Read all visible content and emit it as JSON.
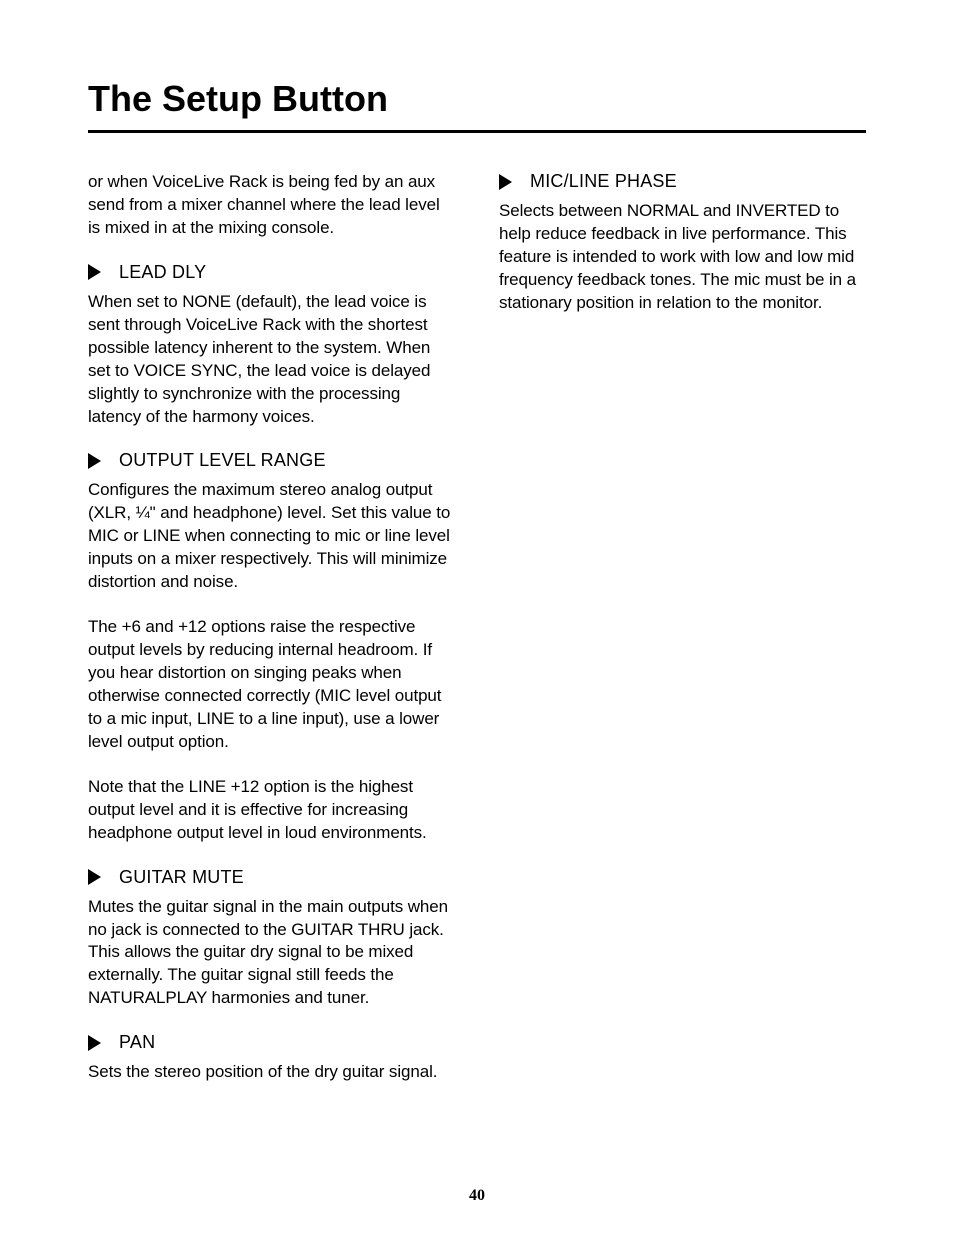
{
  "page": {
    "title": "The Setup Button",
    "number": "40"
  },
  "left": {
    "intro": "or when VoiceLive Rack is being fed by an aux send from a mixer channel where the lead level is mixed in at the mixing console.",
    "sections": [
      {
        "heading": "LEAD DLY",
        "paras": [
          "When set to NONE (default), the lead voice is sent through VoiceLive Rack with the shortest possible latency inherent to the system. When set to VOICE SYNC, the lead voice is delayed slightly to synchronize with the processing latency of the harmony voices."
        ]
      },
      {
        "heading": "OUTPUT LEVEL RANGE",
        "paras": [
          "Configures the maximum stereo analog output (XLR, ¼\" and headphone) level. Set this value to MIC or LINE when connecting to mic or line level inputs on a mixer respectively. This will minimize distortion and noise.",
          "The +6 and +12 options raise the respective output levels by reducing internal headroom. If you hear distortion on singing peaks when otherwise connected correctly (MIC level output to a mic input, LINE to a line input), use a lower level output option.",
          "Note that the LINE +12 option is the highest output level and it is effective for increasing headphone output level in loud environments."
        ]
      },
      {
        "heading": "GUITAR MUTE",
        "paras": [
          "Mutes the guitar signal in the main outputs when no jack is connected to the GUITAR THRU jack. This allows the guitar dry signal to be mixed externally. The guitar signal still feeds the NATURALPLAY harmonies and tuner."
        ]
      },
      {
        "heading": "PAN",
        "paras": [
          "Sets the stereo position of the dry guitar signal."
        ]
      }
    ]
  },
  "right": {
    "sections": [
      {
        "heading": "MIC/LINE PHASE",
        "paras": [
          "Selects between NORMAL and INVERTED to help reduce feedback in live performance. This feature is intended to work with low and low mid frequency feedback tones. The mic must be in a stationary position in relation to the monitor."
        ]
      }
    ]
  }
}
